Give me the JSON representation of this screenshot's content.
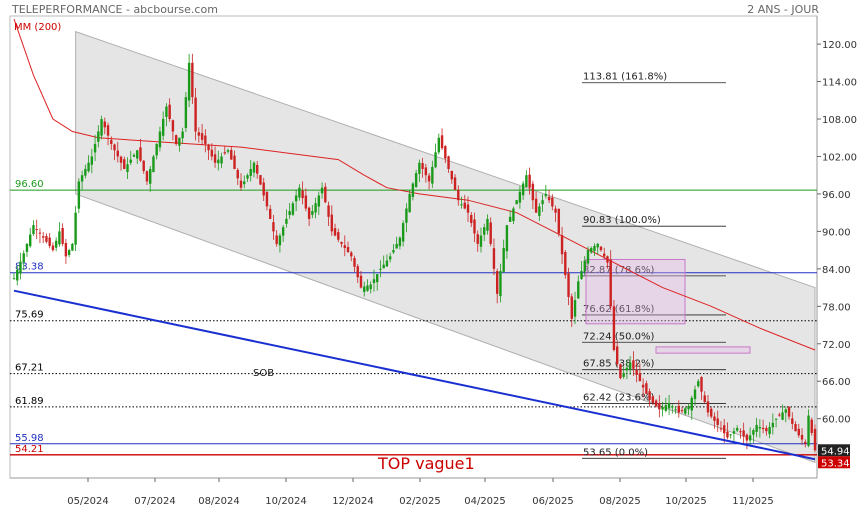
{
  "header": {
    "title": "TELEPERFORMANCE - abcbourse.com",
    "period": "2 ANS - JOUR"
  },
  "chart_data": {
    "type": "candlestick",
    "title": "TELEPERFORMANCE - abcbourse.com",
    "subtitle": "2 ANS - JOUR",
    "ma_label": "MM (200)",
    "ylim": [
      50.5,
      124.5
    ],
    "y_ticks": [
      120,
      114,
      108,
      102,
      96,
      90,
      84,
      78,
      72,
      66,
      60
    ],
    "y_tick_labels": [
      "120.00",
      "114.00",
      "108.00",
      "102.00",
      "96.00",
      "90.00",
      "84.00",
      "78.00",
      "72.00",
      "66.00",
      "60.00"
    ],
    "x_ticks": [
      "05/2024",
      "07/2024",
      "08/2024",
      "10/2024",
      "12/2024",
      "02/2025",
      "04/2025",
      "06/2025",
      "08/2025",
      "10/2025",
      "11/2025"
    ],
    "last_price": "54.94",
    "last_price_2": "53.34",
    "price_path": [
      {
        "t": 0,
        "v": 82.5
      },
      {
        "t": 3,
        "v": 86.5
      },
      {
        "t": 6,
        "v": 91.0
      },
      {
        "t": 9,
        "v": 89.0
      },
      {
        "t": 12,
        "v": 87.0
      },
      {
        "t": 14,
        "v": 90.0
      },
      {
        "t": 16,
        "v": 86.0
      },
      {
        "t": 18,
        "v": 88.0
      },
      {
        "t": 20,
        "v": 98.0
      },
      {
        "t": 24,
        "v": 102.0
      },
      {
        "t": 27,
        "v": 108.0
      },
      {
        "t": 30,
        "v": 104.0
      },
      {
        "t": 34,
        "v": 100.0
      },
      {
        "t": 38,
        "v": 103.0
      },
      {
        "t": 41,
        "v": 98.0
      },
      {
        "t": 44,
        "v": 104.0
      },
      {
        "t": 47,
        "v": 110.0
      },
      {
        "t": 50,
        "v": 104.0
      },
      {
        "t": 52,
        "v": 106.0
      },
      {
        "t": 54,
        "v": 117.0
      },
      {
        "t": 56,
        "v": 106.0
      },
      {
        "t": 59,
        "v": 104.0
      },
      {
        "t": 62,
        "v": 101.0
      },
      {
        "t": 66,
        "v": 103.0
      },
      {
        "t": 70,
        "v": 97.0
      },
      {
        "t": 74,
        "v": 101.0
      },
      {
        "t": 78,
        "v": 94.0
      },
      {
        "t": 81,
        "v": 88.0
      },
      {
        "t": 84,
        "v": 92.0
      },
      {
        "t": 88,
        "v": 97.0
      },
      {
        "t": 91,
        "v": 92.0
      },
      {
        "t": 95,
        "v": 97.0
      },
      {
        "t": 98,
        "v": 90.0
      },
      {
        "t": 101,
        "v": 88.0
      },
      {
        "t": 104,
        "v": 86.0
      },
      {
        "t": 107,
        "v": 81.0
      },
      {
        "t": 110,
        "v": 81.5
      },
      {
        "t": 113,
        "v": 84.0
      },
      {
        "t": 116,
        "v": 86.0
      },
      {
        "t": 119,
        "v": 89.0
      },
      {
        "t": 122,
        "v": 96.0
      },
      {
        "t": 125,
        "v": 101.0
      },
      {
        "t": 128,
        "v": 98.0
      },
      {
        "t": 131,
        "v": 105.0
      },
      {
        "t": 134,
        "v": 100.0
      },
      {
        "t": 137,
        "v": 95.0
      },
      {
        "t": 140,
        "v": 93.0
      },
      {
        "t": 143,
        "v": 88.0
      },
      {
        "t": 146,
        "v": 92.0
      },
      {
        "t": 149,
        "v": 80.0
      },
      {
        "t": 152,
        "v": 91.0
      },
      {
        "t": 155,
        "v": 95.0
      },
      {
        "t": 158,
        "v": 99.0
      },
      {
        "t": 161,
        "v": 93.0
      },
      {
        "t": 164,
        "v": 96.0
      },
      {
        "t": 167,
        "v": 93.0
      },
      {
        "t": 170,
        "v": 83.0
      },
      {
        "t": 172,
        "v": 76.0
      },
      {
        "t": 174,
        "v": 82.0
      },
      {
        "t": 177,
        "v": 87.0
      },
      {
        "t": 180,
        "v": 88.0
      },
      {
        "t": 183,
        "v": 85.0
      },
      {
        "t": 185,
        "v": 71.0
      },
      {
        "t": 187,
        "v": 66.5
      },
      {
        "t": 190,
        "v": 69.0
      },
      {
        "t": 193,
        "v": 66.0
      },
      {
        "t": 196,
        "v": 63.0
      },
      {
        "t": 199,
        "v": 61.5
      },
      {
        "t": 202,
        "v": 62.5
      },
      {
        "t": 205,
        "v": 61.0
      },
      {
        "t": 208,
        "v": 62.0
      },
      {
        "t": 211,
        "v": 66.0
      },
      {
        "t": 214,
        "v": 61.0
      },
      {
        "t": 217,
        "v": 59.0
      },
      {
        "t": 220,
        "v": 57.0
      },
      {
        "t": 223,
        "v": 58.5
      },
      {
        "t": 226,
        "v": 56.5
      },
      {
        "t": 229,
        "v": 59.0
      },
      {
        "t": 232,
        "v": 58.0
      },
      {
        "t": 235,
        "v": 60.0
      },
      {
        "t": 238,
        "v": 61.5
      },
      {
        "t": 241,
        "v": 58.0
      },
      {
        "t": 244,
        "v": 56.0
      },
      {
        "t": 245,
        "v": 60.5
      },
      {
        "t": 247,
        "v": 54.94
      }
    ],
    "ma200": [
      {
        "t": 0,
        "v": 124.0
      },
      {
        "t": 6,
        "v": 115.0
      },
      {
        "t": 12,
        "v": 108.0
      },
      {
        "t": 18,
        "v": 106.0
      },
      {
        "t": 26,
        "v": 105.0
      },
      {
        "t": 40,
        "v": 104.5
      },
      {
        "t": 55,
        "v": 104.0
      },
      {
        "t": 70,
        "v": 103.5
      },
      {
        "t": 85,
        "v": 102.5
      },
      {
        "t": 100,
        "v": 101.5
      },
      {
        "t": 108,
        "v": 99.0
      },
      {
        "t": 115,
        "v": 97.0
      },
      {
        "t": 125,
        "v": 96.0
      },
      {
        "t": 140,
        "v": 95.0
      },
      {
        "t": 155,
        "v": 93.0
      },
      {
        "t": 170,
        "v": 89.0
      },
      {
        "t": 185,
        "v": 85.0
      },
      {
        "t": 200,
        "v": 81.0
      },
      {
        "t": 215,
        "v": 78.0
      },
      {
        "t": 230,
        "v": 74.5
      },
      {
        "t": 247,
        "v": 71.0
      }
    ],
    "channel": {
      "upper": [
        {
          "t": 19,
          "v": 122.0
        },
        {
          "t": 247,
          "v": 81.0
        }
      ],
      "lower": [
        {
          "t": 19,
          "v": 96.0
        },
        {
          "t": 247,
          "v": 53.0
        }
      ]
    },
    "trendline": [
      {
        "t": 0,
        "v": 80.5
      },
      {
        "t": 247,
        "v": 53.5
      }
    ],
    "horizontal_levels": [
      {
        "value": 96.6,
        "label": "96.60",
        "color": "#1a9a1a",
        "style": "solid"
      },
      {
        "value": 83.38,
        "label": "83.38",
        "color": "#2030c0",
        "style": "solid"
      },
      {
        "value": 75.69,
        "label": "75.69",
        "color": "#000000",
        "style": "dotted"
      },
      {
        "value": 67.21,
        "label": "67.21",
        "color": "#000000",
        "style": "dotted"
      },
      {
        "value": 61.89,
        "label": "61.89",
        "color": "#000000",
        "style": "dotted"
      },
      {
        "value": 55.98,
        "label": "55.98",
        "color": "#2030c0",
        "style": "solid"
      },
      {
        "value": 54.21,
        "label": "54.21",
        "color": "#cc0000",
        "style": "solid"
      }
    ],
    "fibonacci": [
      {
        "value": 113.81,
        "label": "113.81  (161.8%)"
      },
      {
        "value": 90.83,
        "label": "90.83  (100.0%)"
      },
      {
        "value": 82.87,
        "label": "82.87  (78.6%)"
      },
      {
        "value": 76.62,
        "label": "76.62  (61.8%)"
      },
      {
        "value": 72.24,
        "label": "72.24  (50.0%)"
      },
      {
        "value": 67.85,
        "label": "67.85  (38.2%)"
      },
      {
        "value": 62.42,
        "label": "62.42  (23.6%)"
      },
      {
        "value": 53.65,
        "label": "53.65  (0.0%)"
      }
    ],
    "annotations": {
      "sob": "SOB",
      "top": "TOP vague1"
    },
    "colors": {
      "up": "#1a9a1a",
      "down": "#cc2222",
      "ma": "#dd2222",
      "channel_fill": "#dcdcdc",
      "trendline": "#1a2fd0",
      "zone": "#c878c8"
    }
  }
}
